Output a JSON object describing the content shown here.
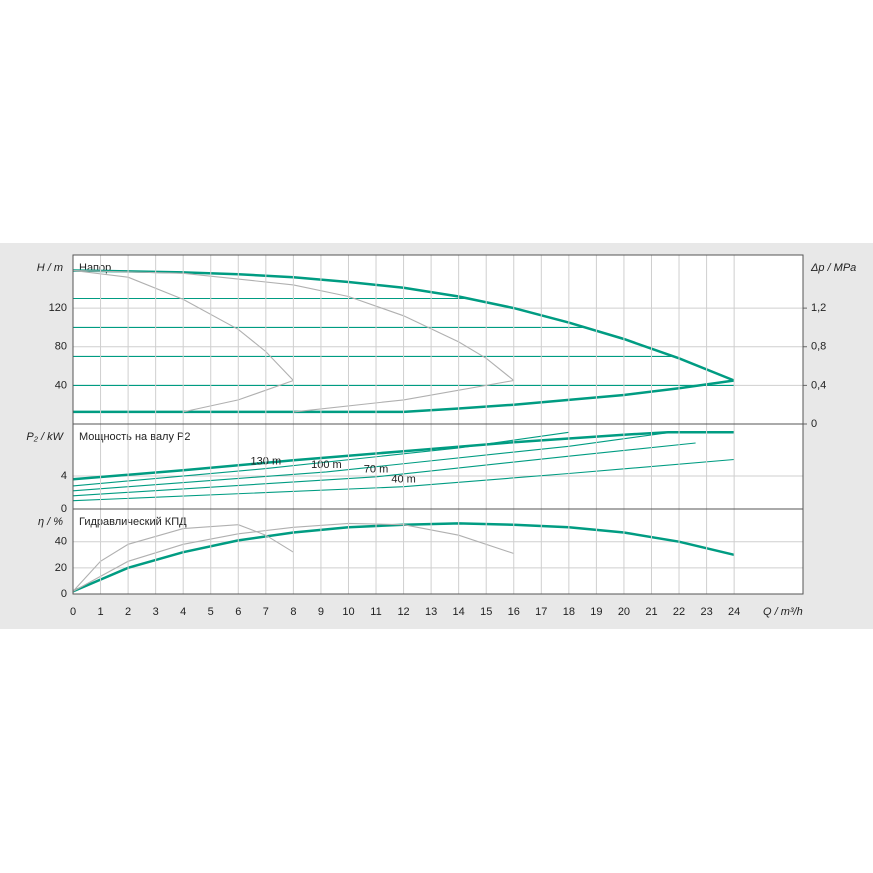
{
  "chart_data": [
    {
      "type": "line",
      "title": "Напор",
      "ylabel": "H / m",
      "y2label": "Δp / MPa",
      "xlim": [
        0,
        26.5
      ],
      "ylim": [
        0,
        175
      ],
      "yticks": [
        40,
        80,
        120
      ],
      "y2lim": [
        0,
        1.75
      ],
      "y2ticks": [
        0,
        {
          "value": 0.4,
          "label": "0,4"
        },
        {
          "value": 0.8,
          "label": "0,8"
        },
        {
          "value": 1.2,
          "label": "1,2"
        }
      ],
      "grid": true,
      "series": [
        {
          "color": "#009c82",
          "linestyle": "thick",
          "x": [
            0,
            2,
            4,
            6,
            8,
            10,
            12,
            14,
            16,
            18,
            20,
            22,
            24
          ],
          "values": [
            159,
            158,
            157,
            155,
            152,
            147,
            141,
            132,
            120,
            105,
            88,
            68,
            45
          ]
        },
        {
          "color": "#009c82",
          "linestyle": "thick",
          "x": [
            0,
            4,
            8,
            12,
            14,
            16,
            18,
            20,
            22,
            24
          ],
          "values": [
            12.5,
            12.5,
            12.5,
            12.5,
            16,
            20,
            25,
            30,
            37,
            45
          ]
        },
        {
          "color": "#009c82",
          "linestyle": "thin",
          "x": [
            0,
            14.3
          ],
          "values": [
            130,
            130
          ]
        },
        {
          "color": "#009c82",
          "linestyle": "thin",
          "x": [
            0,
            18.6
          ],
          "values": [
            100,
            100
          ]
        },
        {
          "color": "#009c82",
          "linestyle": "thin",
          "x": [
            0,
            21.8
          ],
          "values": [
            70,
            70
          ]
        },
        {
          "color": "#009c82",
          "linestyle": "thin",
          "x": [
            0,
            24
          ],
          "values": [
            40,
            40
          ]
        },
        {
          "color": "#b0b0b0",
          "linestyle": "thin",
          "x": [
            0,
            2,
            4,
            6,
            7,
            8
          ],
          "values": [
            159,
            152,
            129,
            98,
            75,
            45
          ]
        },
        {
          "color": "#b0b0b0",
          "linestyle": "thin",
          "x": [
            4,
            6,
            8
          ],
          "values": [
            12.5,
            25,
            45
          ]
        },
        {
          "color": "#b0b0b0",
          "linestyle": "thin",
          "x": [
            0,
            4,
            8,
            10,
            12,
            14,
            15,
            16
          ],
          "values": [
            159,
            156,
            144,
            132,
            112,
            85,
            68,
            45
          ]
        },
        {
          "color": "#b0b0b0",
          "linestyle": "thin",
          "x": [
            8,
            12,
            16
          ],
          "values": [
            12.5,
            25,
            45
          ]
        }
      ]
    },
    {
      "type": "line",
      "title": "Мощность на валу P2",
      "ylabel": "P₂ / kW",
      "xlim": [
        0,
        26.5
      ],
      "ylim": [
        0,
        10.3
      ],
      "yticks": [
        0,
        4
      ],
      "grid": true,
      "series": [
        {
          "color": "#009c82",
          "linestyle": "thick",
          "x": [
            0,
            4,
            8,
            12,
            16,
            20,
            21.6,
            24
          ],
          "values": [
            3.6,
            4.7,
            5.9,
            7.0,
            8.1,
            9.0,
            9.3,
            9.3
          ]
        },
        {
          "name": "130 m",
          "color": "#009c82",
          "linestyle": "thin",
          "x": [
            0,
            7,
            14,
            18
          ],
          "values": [
            2.8,
            4.9,
            7.4,
            9.3
          ]
        },
        {
          "name": "100 m",
          "color": "#009c82",
          "linestyle": "thin",
          "x": [
            0,
            9.2,
            18,
            21.7
          ],
          "values": [
            2.2,
            4.5,
            7.6,
            9.3
          ]
        },
        {
          "name": "70 m",
          "color": "#009c82",
          "linestyle": "thin",
          "x": [
            0,
            11,
            18,
            22.6
          ],
          "values": [
            1.6,
            3.9,
            6.4,
            8.0
          ]
        },
        {
          "name": "40 m",
          "color": "#009c82",
          "linestyle": "thin",
          "x": [
            0,
            12,
            18,
            24
          ],
          "values": [
            1.0,
            2.7,
            4.3,
            6.0
          ]
        }
      ]
    },
    {
      "type": "line",
      "title": "Гидравлический КПД",
      "ylabel": "η / %",
      "xlabel": "Q / m³/h",
      "xlim": [
        0,
        26.5
      ],
      "xticks": [
        0,
        1,
        2,
        3,
        4,
        5,
        6,
        7,
        8,
        9,
        10,
        11,
        12,
        13,
        14,
        15,
        16,
        17,
        18,
        19,
        20,
        21,
        22,
        23,
        24
      ],
      "ylim": [
        0,
        65
      ],
      "yticks": [
        0,
        20,
        40
      ],
      "grid": true,
      "series": [
        {
          "color": "#009c82",
          "linestyle": "thick",
          "x": [
            0,
            2,
            4,
            6,
            8,
            10,
            12,
            14,
            16,
            18,
            20,
            22,
            24
          ],
          "values": [
            2,
            20,
            32,
            41,
            47,
            51,
            53,
            54,
            53,
            51,
            47,
            40,
            30
          ]
        },
        {
          "color": "#b0b0b0",
          "linestyle": "thin",
          "x": [
            0,
            1,
            2,
            4,
            6,
            7,
            8
          ],
          "values": [
            2,
            25,
            38,
            50,
            53,
            45,
            32
          ]
        },
        {
          "color": "#b0b0b0",
          "linestyle": "thin",
          "x": [
            0,
            2,
            4,
            6,
            8,
            10,
            12,
            14,
            16
          ],
          "values": [
            2,
            25,
            38,
            46,
            51,
            54,
            53,
            45,
            31
          ]
        }
      ]
    }
  ]
}
